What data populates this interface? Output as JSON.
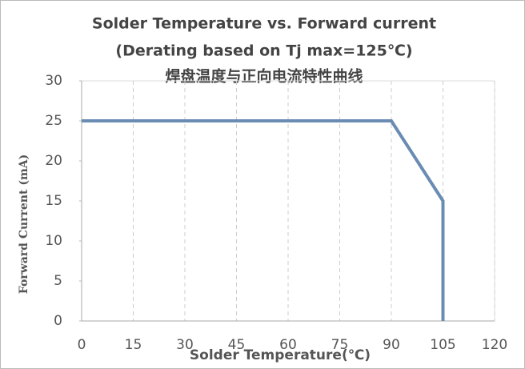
{
  "chart_data": {
    "type": "line",
    "title": "Solder Temperature vs. Forward current",
    "subtitle": "(Derating based on Tj max=125℃)",
    "subtitle2": "焊盘温度与正向电流特性曲线",
    "x_label": "Solder Temperature(℃)",
    "y_label": "Forward Current (mA)",
    "series": [
      {
        "name": "Forward Current",
        "color": "#6a8cb2",
        "x": [
          0,
          90,
          105,
          105
        ],
        "values": [
          25,
          25,
          15,
          0
        ]
      }
    ],
    "xlim": [
      0,
      120
    ],
    "xticks": [
      0,
      15,
      30,
      45,
      60,
      75,
      90,
      105,
      120
    ],
    "ylim": [
      0,
      30
    ],
    "yticks": [
      0,
      5,
      10,
      15,
      20,
      25,
      30
    ],
    "grid": true
  }
}
